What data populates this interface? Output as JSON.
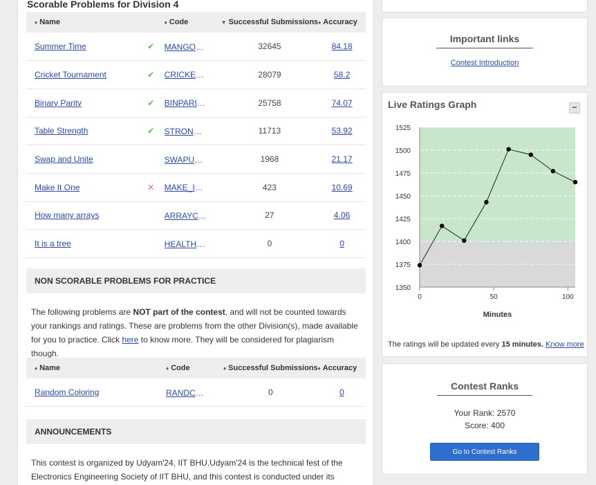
{
  "scorable": {
    "title": "Scorable Problems for Division 4",
    "headers": {
      "name": "Name",
      "code": "Code",
      "subs": "Successful Submissions",
      "acc": "Accuracy"
    },
    "rows": [
      {
        "name": "Summer Time",
        "status": "✔",
        "status_type": "solved",
        "code": "MANGOLOVER",
        "subs": "32645",
        "acc": "84.18"
      },
      {
        "name": "Cricket Tournament",
        "status": "✔",
        "status_type": "solved",
        "code": "CRICKETTOUR",
        "subs": "28079",
        "acc": "58.2"
      },
      {
        "name": "Binary Parity",
        "status": "✔",
        "status_type": "solved",
        "code": "BINPARITY",
        "subs": "25758",
        "acc": "74.07"
      },
      {
        "name": "Table Strength",
        "status": "✔",
        "status_type": "solved",
        "code": "STRONGTABLE",
        "subs": "11713",
        "acc": "53.92"
      },
      {
        "name": "Swap and Unite",
        "status": "",
        "status_type": "none",
        "code": "SWAPUNITE",
        "subs": "1968",
        "acc": "21.17"
      },
      {
        "name": "Make It One",
        "status": "✕",
        "status_type": "wrong",
        "code": "MAKE_IT_ONE",
        "subs": "423",
        "acc": "10.69"
      },
      {
        "name": "How many arrays",
        "status": "",
        "status_type": "none",
        "code": "ARRAYCOUNT",
        "subs": "27",
        "acc": "4.06"
      },
      {
        "name": "It is a tree",
        "status": "",
        "status_type": "none",
        "code": "HEALTHYTREE",
        "subs": "0",
        "acc": "0"
      }
    ]
  },
  "non_scorable": {
    "heading": "NON SCORABLE PROBLEMS FOR PRACTICE",
    "text_1": "The following problems are ",
    "text_bold": "NOT part of the contest",
    "text_2": ", and will not be counted towards your rankings and ratings. These are problems from the other Division(s), made available for you to practice. Click ",
    "link": "here",
    "text_3": " to know more. They will be considered for plagiarism though.",
    "headers": {
      "name": "Name",
      "code": "Code",
      "subs": "Successful Submissions",
      "acc": "Accuracy"
    },
    "rows": [
      {
        "name": "Random Coloring",
        "code": "RANDCOLOR",
        "subs": "0",
        "acc": "0"
      }
    ]
  },
  "announcements": {
    "heading": "ANNOUNCEMENTS",
    "line_1": "This contest is organized by Udyam'24, IIT BHU.Udyam'24 is the technical fest of the",
    "line_2": "Electronics Engineering Society of IIT BHU, and this contest is conducted under its"
  },
  "important_links": {
    "title": "Important links",
    "link": "Contest Introduction"
  },
  "ratings": {
    "title": "Live Ratings Graph",
    "collapse": "−",
    "note_1": "The ratings will be updated every ",
    "note_bold": "15 minutes.",
    "note_link": "Know more"
  },
  "chart_data": {
    "type": "line",
    "x": [
      0,
      15,
      30,
      45,
      60,
      75,
      90,
      105
    ],
    "values": [
      1374,
      1417,
      1401,
      1443,
      1501,
      1495,
      1477,
      1465
    ],
    "xlabel": "Minutes",
    "ylabel": "",
    "xlim": [
      0,
      105
    ],
    "ylim": [
      1350,
      1525
    ],
    "xticks": [
      0,
      50,
      100
    ],
    "yticks": [
      1350,
      1375,
      1400,
      1425,
      1450,
      1475,
      1500,
      1525
    ],
    "bands": [
      {
        "from": 1350,
        "to": 1400,
        "color": "#d9d9d9"
      },
      {
        "from": 1400,
        "to": 1525,
        "color": "#c8e6c9"
      }
    ],
    "line_color": "#222222"
  },
  "ranks": {
    "title": "Contest Ranks",
    "rank": "Your Rank: 2570",
    "score": "Score: 400",
    "button": "Go to Contest Ranks"
  }
}
